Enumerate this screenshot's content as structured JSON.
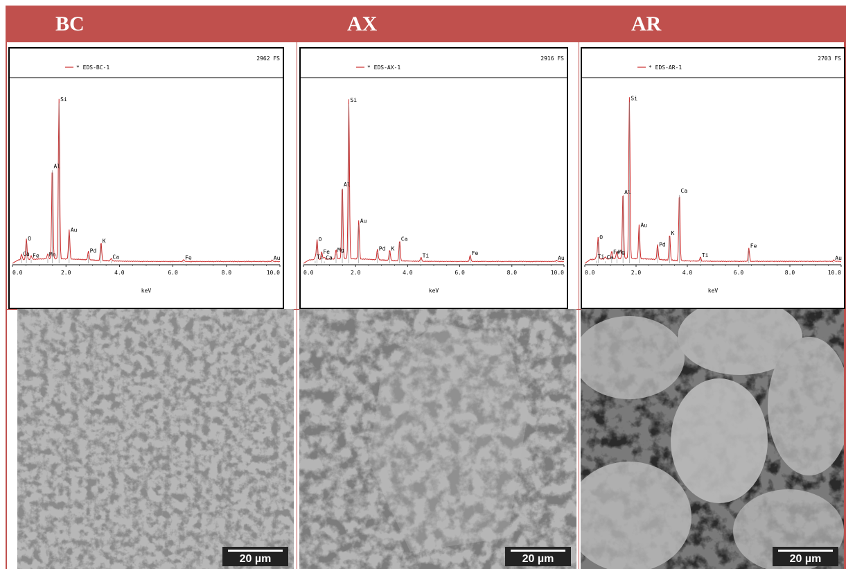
{
  "headers": [
    "BC",
    "AX",
    "AR"
  ],
  "colors": {
    "header_bg": "#c0504d",
    "spectrum": "#cc2b2b",
    "marker": "#888888"
  },
  "scale_bar_text": "20 µm",
  "chart_data": [
    {
      "type": "line",
      "title": "BC",
      "legend": "* EDS-BC-1",
      "fullscale": "2962 FS",
      "xlabel": "keV",
      "xlim": [
        0,
        10
      ],
      "ylim": [
        0,
        2962
      ],
      "xticks": [
        "0.0",
        "2.0",
        "4.0",
        "6.0",
        "8.0",
        "10.0"
      ],
      "peaks": [
        {
          "label": "O",
          "x": 0.52,
          "y": 340
        },
        {
          "label": "Ca",
          "x": 0.34,
          "y": 90
        },
        {
          "label": "Fe",
          "x": 0.7,
          "y": 60
        },
        {
          "label": "Mn",
          "x": 1.32,
          "y": 80
        },
        {
          "label": "Al",
          "x": 1.49,
          "y": 1520
        },
        {
          "label": "Si",
          "x": 1.74,
          "y": 2610
        },
        {
          "label": "Au",
          "x": 2.12,
          "y": 480
        },
        {
          "label": "Pd",
          "x": 2.84,
          "y": 140
        },
        {
          "label": "K",
          "x": 3.31,
          "y": 300
        },
        {
          "label": "Ca",
          "x": 3.69,
          "y": 40
        },
        {
          "label": "Fe",
          "x": 6.4,
          "y": 30
        },
        {
          "label": "Au",
          "x": 9.71,
          "y": 20
        }
      ]
    },
    {
      "type": "line",
      "title": "AX",
      "legend": "* EDS-AX-1",
      "fullscale": "2916 FS",
      "xlabel": "keV",
      "xlim": [
        0,
        10
      ],
      "ylim": [
        0,
        2916
      ],
      "xticks": [
        "0.0",
        "2.0",
        "4.0",
        "6.0",
        "8.0",
        "10.0"
      ],
      "peaks": [
        {
          "label": "O",
          "x": 0.52,
          "y": 320
        },
        {
          "label": "Ti",
          "x": 0.45,
          "y": 40
        },
        {
          "label": "Fe",
          "x": 0.7,
          "y": 120
        },
        {
          "label": "Ca",
          "x": 0.8,
          "y": 30
        },
        {
          "label": "Mg",
          "x": 1.25,
          "y": 150
        },
        {
          "label": "Al",
          "x": 1.49,
          "y": 1200
        },
        {
          "label": "Si",
          "x": 1.74,
          "y": 2560
        },
        {
          "label": "Au",
          "x": 2.12,
          "y": 620
        },
        {
          "label": "Pd",
          "x": 2.84,
          "y": 170
        },
        {
          "label": "K",
          "x": 3.31,
          "y": 170
        },
        {
          "label": "Ca",
          "x": 3.69,
          "y": 330
        },
        {
          "label": "Ti",
          "x": 4.51,
          "y": 60
        },
        {
          "label": "Fe",
          "x": 6.4,
          "y": 100
        },
        {
          "label": "Au",
          "x": 9.71,
          "y": 20
        }
      ]
    },
    {
      "type": "line",
      "title": "AR",
      "legend": "* EDS-AR-1",
      "fullscale": "2703 FS",
      "xlabel": "keV",
      "xlim": [
        0,
        10
      ],
      "ylim": [
        0,
        2703
      ],
      "xticks": [
        "0.0",
        "2.0",
        "4.0",
        "6.0",
        "8.0",
        "10.0"
      ],
      "peaks": [
        {
          "label": "O",
          "x": 0.52,
          "y": 330
        },
        {
          "label": "Ti",
          "x": 0.45,
          "y": 40
        },
        {
          "label": "Ca",
          "x": 0.8,
          "y": 30
        },
        {
          "label": "Fe",
          "x": 1.05,
          "y": 110
        },
        {
          "label": "Mg",
          "x": 1.25,
          "y": 110
        },
        {
          "label": "Al",
          "x": 1.49,
          "y": 1000
        },
        {
          "label": "Si",
          "x": 1.74,
          "y": 2400
        },
        {
          "label": "Au",
          "x": 2.12,
          "y": 510
        },
        {
          "label": "Pd",
          "x": 2.84,
          "y": 220
        },
        {
          "label": "K",
          "x": 3.31,
          "y": 390
        },
        {
          "label": "Ca",
          "x": 3.69,
          "y": 1020
        },
        {
          "label": "Ti",
          "x": 4.51,
          "y": 60
        },
        {
          "label": "Fe",
          "x": 6.4,
          "y": 200
        },
        {
          "label": "Au",
          "x": 9.71,
          "y": 20
        }
      ]
    }
  ]
}
